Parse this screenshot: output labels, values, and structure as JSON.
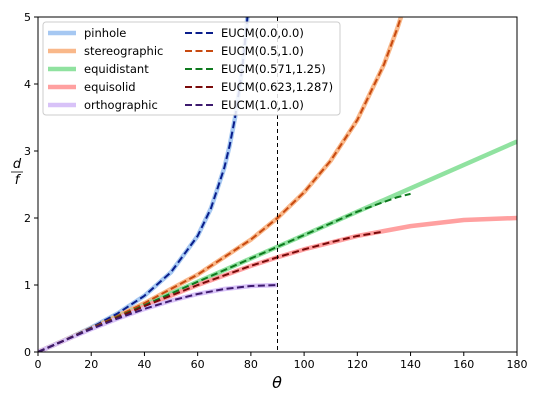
{
  "chart_data": {
    "type": "line",
    "xlabel": "θ",
    "ylabel_numerator": "d",
    "ylabel_denominator": "f",
    "xlim": [
      0,
      180
    ],
    "ylim": [
      0,
      5
    ],
    "xticks": [
      0,
      20,
      40,
      60,
      80,
      100,
      120,
      140,
      160,
      180
    ],
    "yticks": [
      0,
      1,
      2,
      3,
      4,
      5
    ],
    "grid": false,
    "legend_placement": "top-left",
    "vertical_reference_line": {
      "x": 90,
      "style": "dashed",
      "color": "#000000"
    },
    "series": [
      {
        "name": "pinhole",
        "color": "#a6c8f2",
        "style": "solid",
        "x": [
          0,
          10,
          20,
          30,
          40,
          50,
          60,
          65,
          70,
          72,
          74,
          76,
          77,
          78,
          78.7
        ],
        "y": [
          0,
          0.176,
          0.364,
          0.577,
          0.839,
          1.192,
          1.732,
          2.145,
          2.747,
          3.078,
          3.487,
          4.011,
          4.331,
          4.705,
          5.0
        ]
      },
      {
        "name": "stereographic",
        "color": "#f9b88a",
        "style": "solid",
        "x": [
          0,
          20,
          40,
          60,
          80,
          90,
          100,
          110,
          120,
          130,
          135,
          136.4
        ],
        "y": [
          0,
          0.353,
          0.728,
          1.155,
          1.678,
          2.0,
          2.384,
          2.856,
          3.464,
          4.29,
          4.828,
          5.0
        ]
      },
      {
        "name": "equidistant",
        "color": "#90e2a0",
        "style": "solid",
        "x": [
          0,
          180
        ],
        "y": [
          0,
          3.1416
        ]
      },
      {
        "name": "equisolid",
        "color": "#ffa0a0",
        "style": "solid",
        "x": [
          0,
          20,
          40,
          60,
          80,
          90,
          100,
          120,
          140,
          160,
          180
        ],
        "y": [
          0,
          0.347,
          0.684,
          1.0,
          1.286,
          1.414,
          1.532,
          1.732,
          1.879,
          1.97,
          2.0
        ]
      },
      {
        "name": "orthographic",
        "color": "#d8c2f8",
        "style": "solid",
        "x": [
          0,
          10,
          20,
          30,
          40,
          50,
          60,
          70,
          80,
          90
        ],
        "y": [
          0,
          0.174,
          0.342,
          0.5,
          0.643,
          0.766,
          0.866,
          0.94,
          0.985,
          1.0
        ]
      },
      {
        "name": "EUCM(0.0,0.0)",
        "color": "#0a1e8c",
        "style": "dashed",
        "x": [
          0,
          10,
          20,
          30,
          40,
          50,
          60,
          65,
          70,
          72,
          74,
          76,
          77,
          78,
          78.7
        ],
        "y": [
          0,
          0.176,
          0.364,
          0.577,
          0.839,
          1.192,
          1.732,
          2.145,
          2.747,
          3.078,
          3.487,
          4.011,
          4.331,
          4.705,
          5.0
        ]
      },
      {
        "name": "EUCM(0.5,1.0)",
        "color": "#c84a10",
        "style": "dashed",
        "x": [
          0,
          20,
          40,
          60,
          80,
          90,
          100,
          110,
          120,
          130,
          135,
          136.4
        ],
        "y": [
          0,
          0.353,
          0.728,
          1.155,
          1.678,
          2.0,
          2.384,
          2.856,
          3.464,
          4.29,
          4.828,
          5.0
        ]
      },
      {
        "name": "EUCM(0.571,1.25)",
        "color": "#0f7a1f",
        "style": "dashed",
        "x": [
          0,
          20,
          40,
          60,
          80,
          90,
          100,
          110,
          120,
          130,
          135,
          140
        ],
        "y": [
          0,
          0.349,
          0.698,
          1.047,
          1.396,
          1.571,
          1.745,
          1.92,
          2.094,
          2.24,
          2.31,
          2.36
        ]
      },
      {
        "name": "EUCM(0.623,1.287)",
        "color": "#7a0a0a",
        "style": "dashed",
        "x": [
          0,
          20,
          40,
          60,
          80,
          90,
          100,
          110,
          120,
          129
        ],
        "y": [
          0,
          0.347,
          0.684,
          1.0,
          1.286,
          1.414,
          1.532,
          1.638,
          1.732,
          1.79
        ]
      },
      {
        "name": "EUCM(1.0,1.0)",
        "color": "#3d1a6e",
        "style": "dashed",
        "x": [
          0,
          10,
          20,
          30,
          40,
          50,
          60,
          70,
          80,
          90
        ],
        "y": [
          0,
          0.174,
          0.342,
          0.5,
          0.643,
          0.766,
          0.866,
          0.94,
          0.985,
          1.0
        ]
      }
    ]
  }
}
